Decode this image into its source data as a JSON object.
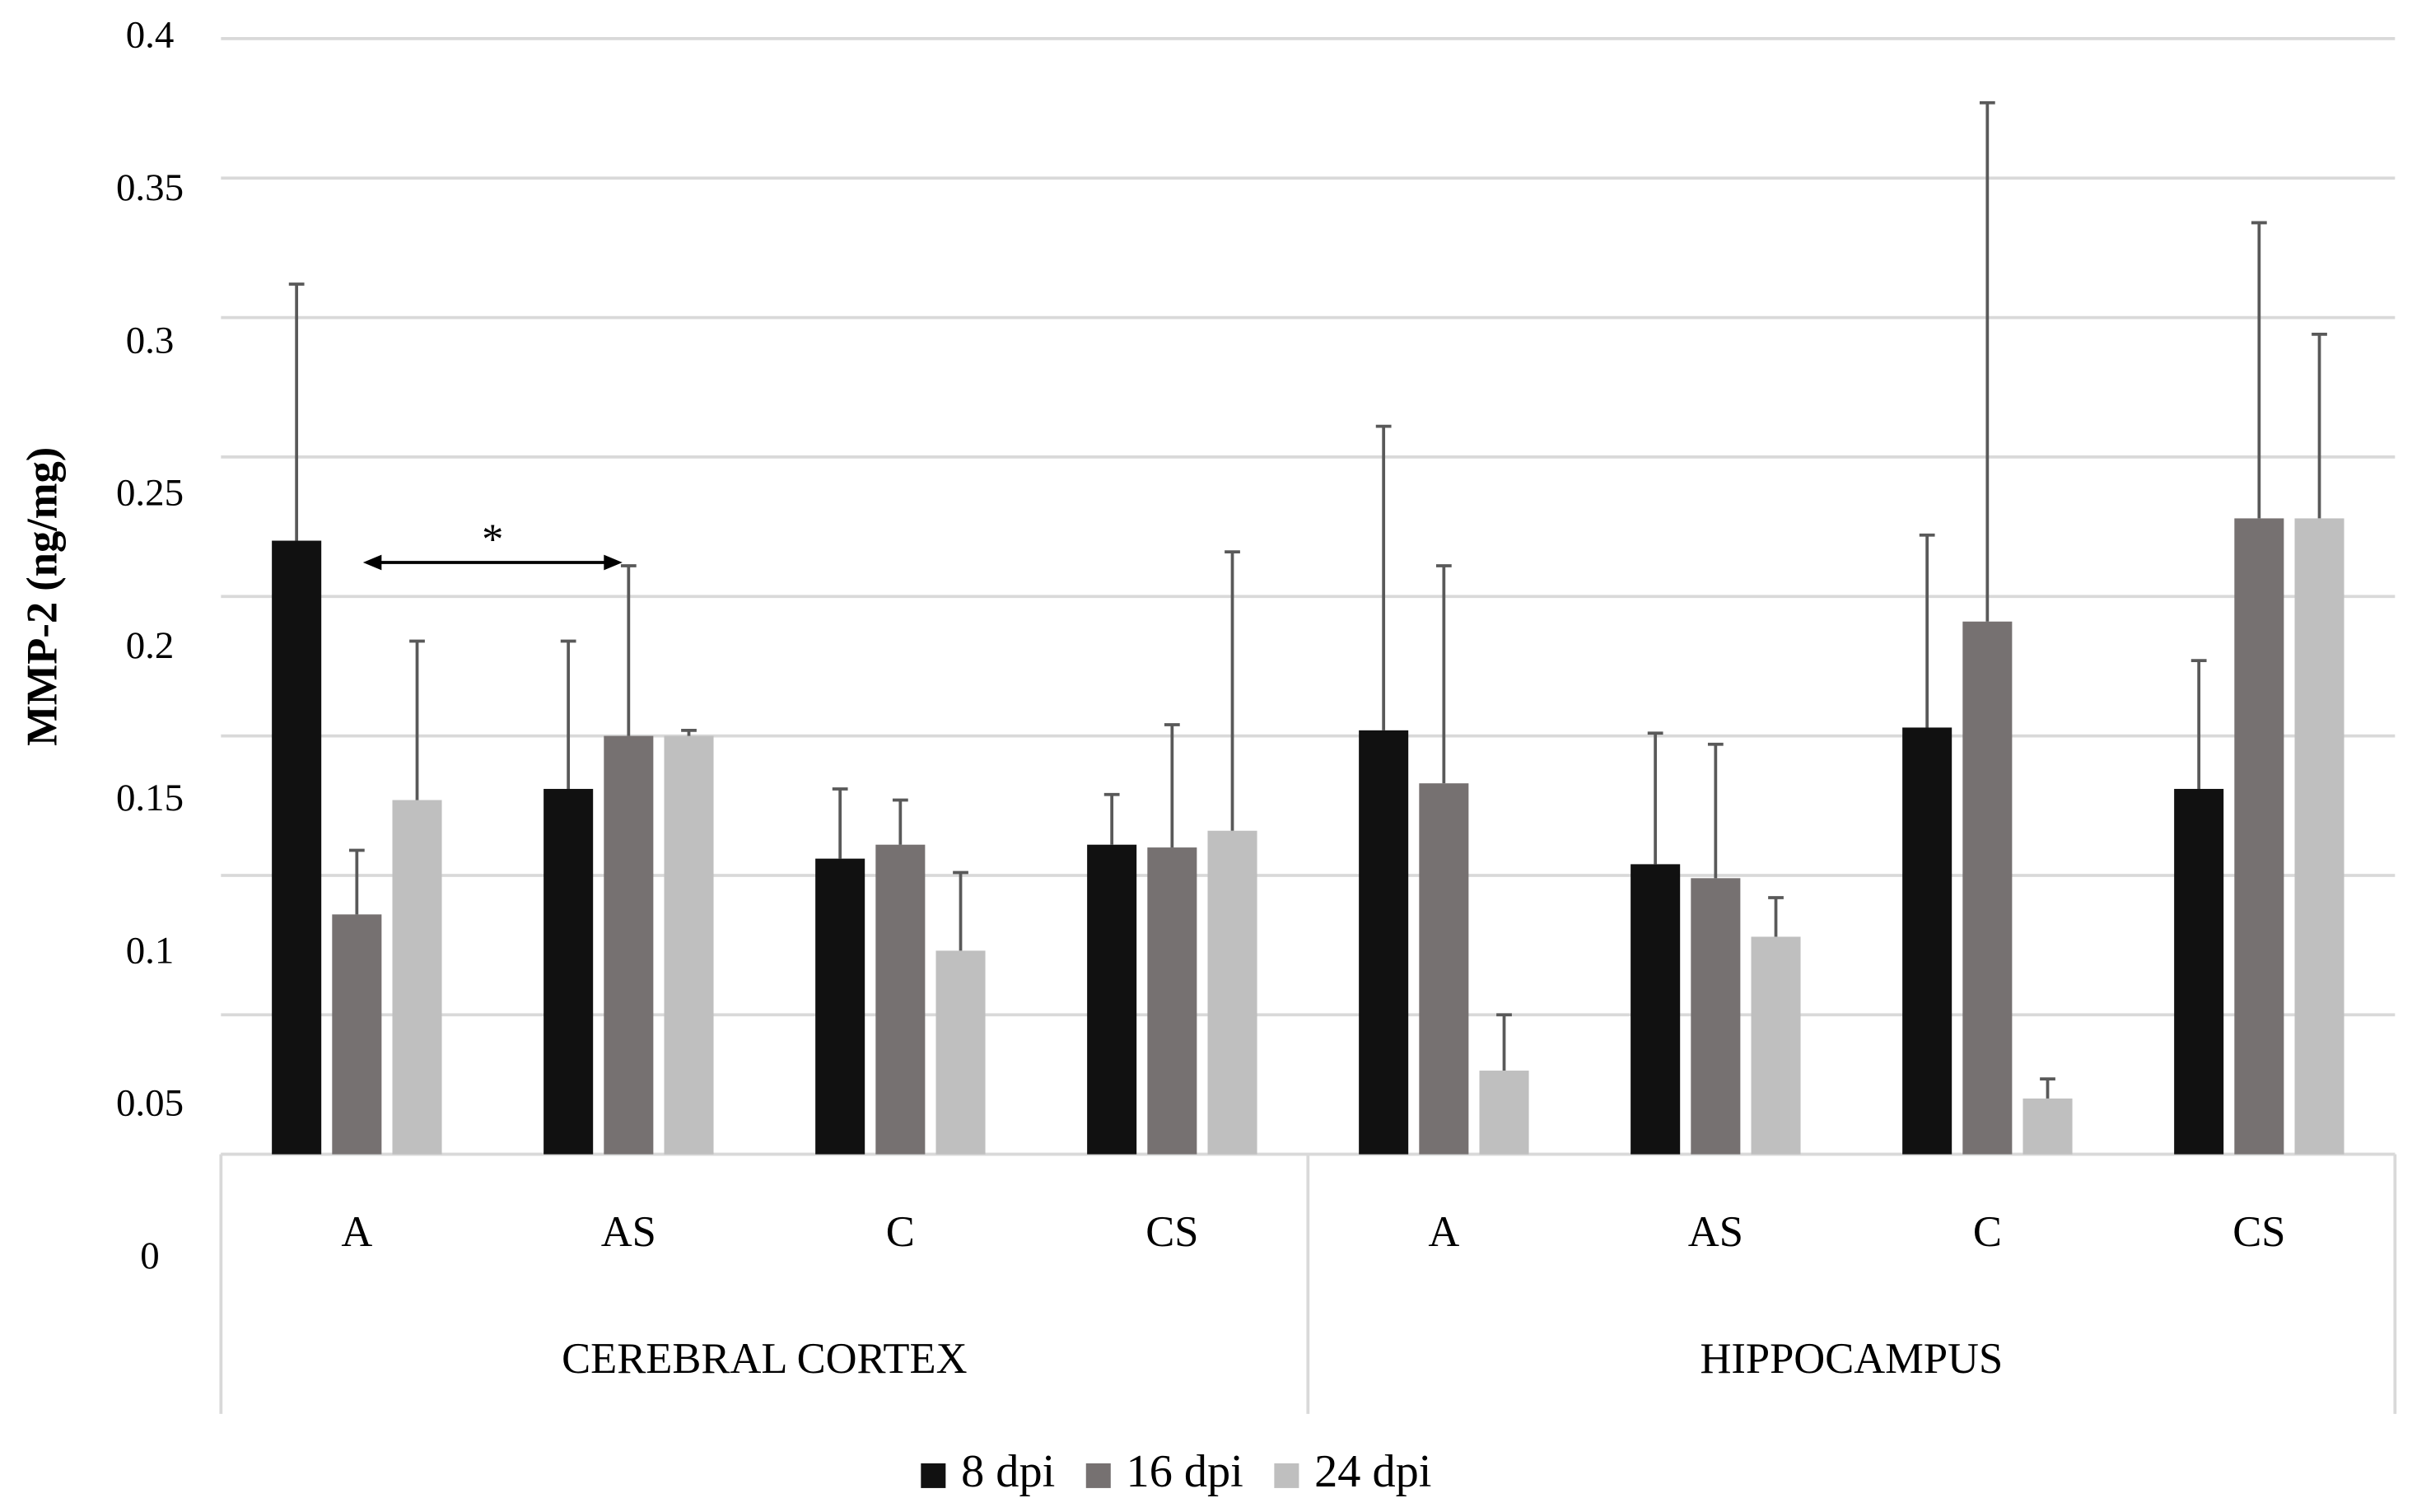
{
  "chart_data": {
    "type": "bar",
    "ylabel": "MMP-2 (ng/mg)",
    "categories": [
      "A",
      "AS",
      "C",
      "CS",
      "A",
      "AS",
      "C",
      "CS"
    ],
    "group_labels": [
      "CEREBRAL CORTEX",
      "HIPPOCAMPUS"
    ],
    "series": [
      {
        "name": "8 dpi",
        "color": "#111111",
        "values": [
          0.22,
          0.131,
          0.106,
          0.111,
          0.152,
          0.104,
          0.153,
          0.131
        ],
        "errors": [
          0.092,
          0.053,
          0.025,
          0.018,
          0.109,
          0.047,
          0.069,
          0.046
        ]
      },
      {
        "name": "16 dpi",
        "color": "#767171",
        "values": [
          0.086,
          0.15,
          0.111,
          0.11,
          0.133,
          0.099,
          0.191,
          0.228
        ],
        "errors": [
          0.023,
          0.061,
          0.016,
          0.044,
          0.078,
          0.048,
          0.186,
          0.106
        ]
      },
      {
        "name": "24 dpi",
        "color": "#bfbfbf",
        "values": [
          0.127,
          0.15,
          0.073,
          0.116,
          0.03,
          0.078,
          0.02,
          0.228
        ],
        "errors": [
          0.057,
          0.002,
          0.028,
          0.1,
          0.02,
          0.014,
          0.007,
          0.066
        ]
      }
    ],
    "annotations": [
      {
        "text": "*"
      }
    ],
    "ylim": [
      0,
      0.4
    ],
    "yticks": [
      0,
      0.05,
      0.1,
      0.15,
      0.2,
      0.25,
      0.3,
      0.35,
      0.4
    ],
    "grid": true,
    "legend": "bottom"
  }
}
